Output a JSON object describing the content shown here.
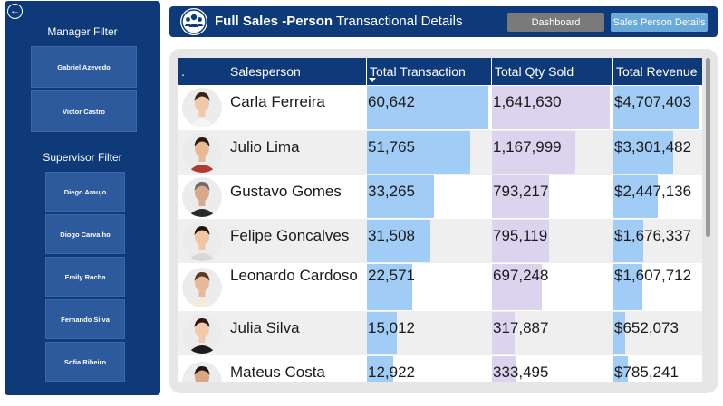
{
  "nav": {
    "back_icon": "back-arrow-icon",
    "dashboard_label": "Dashboard",
    "sales_person_label": "Sales Person Details"
  },
  "header": {
    "title_bold": "Full Sales -Person",
    "title_rest": " Transactional Details",
    "logo_icon": "team-group-icon"
  },
  "filters": {
    "manager_title": "Manager  Filter",
    "managers": [
      "Gabriel Azevedo",
      "Victor Castro"
    ],
    "supervisor_title": "Supervisor  Filter",
    "supervisors": [
      "Diego Araujo",
      "Diogo Carvalho",
      "Emily Rocha",
      "Fernando Silva",
      "Sofia Ribeiro"
    ]
  },
  "table": {
    "columns": [
      ".",
      "Salesperson",
      "Total Transaction",
      "Total Qty Sold",
      "Total Revenue"
    ],
    "sorted_column": "Total Transaction",
    "max": {
      "transactions": 60642,
      "qty": 1641630,
      "revenue": 4707403
    },
    "rows": [
      {
        "name": "Carla Ferreira",
        "transactions": 60642,
        "transactions_label": "60,642",
        "qty": 1641630,
        "qty_label": "1,641,630",
        "revenue": 4707403,
        "revenue_label": "$4,707,403"
      },
      {
        "name": "Julio Lima",
        "transactions": 51765,
        "transactions_label": "51,765",
        "qty": 1167999,
        "qty_label": "1,167,999",
        "revenue": 3301482,
        "revenue_label": "$3,301,482"
      },
      {
        "name": "Gustavo Gomes",
        "transactions": 33265,
        "transactions_label": "33,265",
        "qty": 793217,
        "qty_label": "793,217",
        "revenue": 2447136,
        "revenue_label": "$2,447,136"
      },
      {
        "name": "Felipe Goncalves",
        "transactions": 31508,
        "transactions_label": "31,508",
        "qty": 795119,
        "qty_label": "795,119",
        "revenue": 1676337,
        "revenue_label": "$1,676,337"
      },
      {
        "name": "Leonardo Cardoso",
        "transactions": 22571,
        "transactions_label": "22,571",
        "qty": 697248,
        "qty_label": "697,248",
        "revenue": 1607712,
        "revenue_label": "$1,607,712"
      },
      {
        "name": "Julia Silva",
        "transactions": 15012,
        "transactions_label": "15,012",
        "qty": 317887,
        "qty_label": "317,887",
        "revenue": 652073,
        "revenue_label": "$652,073"
      },
      {
        "name": "Mateus Costa",
        "transactions": 12922,
        "transactions_label": "12,922",
        "qty": 333495,
        "qty_label": "333,495",
        "revenue": 785241,
        "revenue_label": "$785,241"
      }
    ]
  },
  "colors": {
    "navy": "#0e3a7a",
    "chip": "#2d5a9c",
    "bar_transactions": "#a0ccf6",
    "bar_qty": "#dcd3ee",
    "bar_revenue": "#a0ccf6"
  }
}
